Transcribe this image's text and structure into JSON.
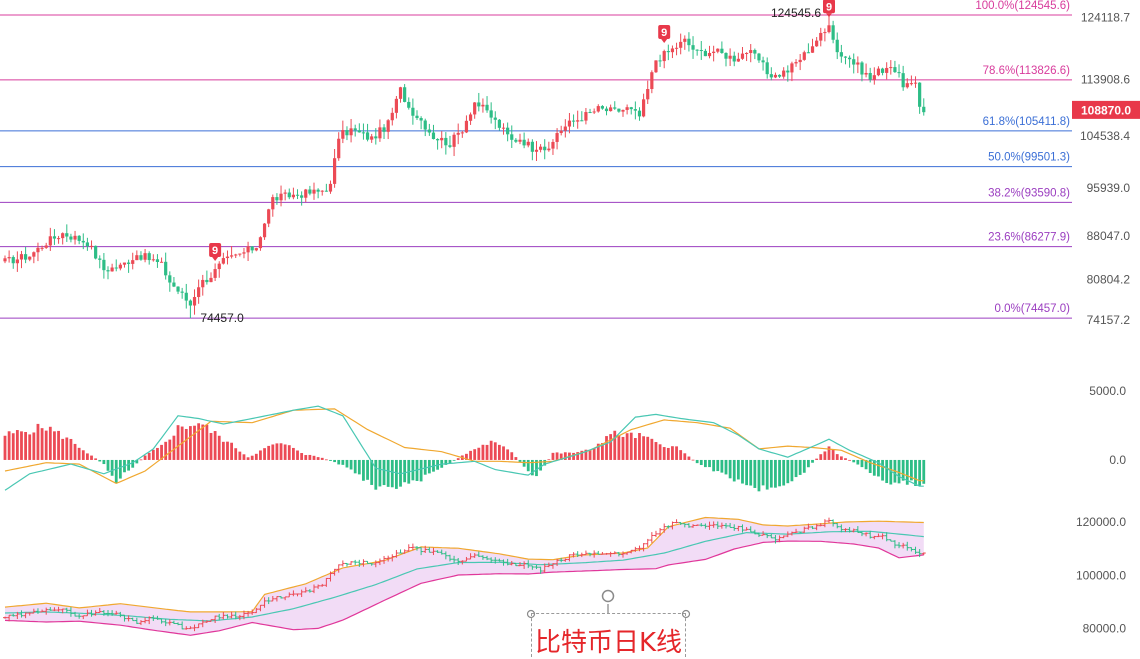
{
  "colors": {
    "up": "#ec4a55",
    "down": "#2dbd86",
    "fib_magenta": "#d83c9c",
    "fib_blue": "#3b6fd6",
    "fib_purple": "#9b3ec0",
    "axis_text": "#555555",
    "price_tag": "#e8384a",
    "macd_dif": "#49c7b3",
    "macd_dea": "#f0a830",
    "boll_upper": "#f0a830",
    "boll_lower": "#e0379a",
    "boll_mid": "#49c7b3",
    "boll_fill": "#f2dcf6"
  },
  "chart_data": [
    {
      "type": "candlestick",
      "name": "price",
      "y_ticks": [
        "124118.7",
        "113908.6",
        "104538.4",
        "95939.0",
        "88047.0",
        "80804.2",
        "74157.2"
      ],
      "ylim": [
        72500,
        126200
      ],
      "last_price": "108870.0",
      "last_price_value": 108870,
      "high_label": "124545.6",
      "low_label": "74457.0",
      "td_marks": [
        "9",
        "9",
        "9"
      ],
      "fib_levels": [
        {
          "label": "100.0%(124545.6)",
          "value": 124545.6,
          "color": "magenta"
        },
        {
          "label": "78.6%(113826.6)",
          "value": 113826.6,
          "color": "magenta"
        },
        {
          "label": "61.8%(105411.8)",
          "value": 105411.8,
          "color": "blue"
        },
        {
          "label": "50.0%(99501.3)",
          "value": 99501.3,
          "color": "blue"
        },
        {
          "label": "38.2%(93590.8)",
          "value": 93590.8,
          "color": "purple"
        },
        {
          "label": "23.6%(86277.9)",
          "value": 86277.9,
          "color": "purple"
        },
        {
          "label": "0.0%(74457.0)",
          "value": 74457.0,
          "color": "purple"
        }
      ],
      "close_path": [
        [
          0,
          83800
        ],
        [
          6,
          84800
        ],
        [
          10,
          87000
        ],
        [
          14,
          88500
        ],
        [
          20,
          87000
        ],
        [
          24,
          82500
        ],
        [
          28,
          83000
        ],
        [
          32,
          85000
        ],
        [
          36,
          84000
        ],
        [
          38,
          83200
        ],
        [
          40,
          80500
        ],
        [
          44,
          77500
        ],
        [
          45,
          76700
        ],
        [
          47,
          80000
        ],
        [
          50,
          81500
        ],
        [
          53,
          83800
        ],
        [
          57,
          85000
        ],
        [
          61,
          86300
        ],
        [
          63,
          90300
        ],
        [
          65,
          94200
        ],
        [
          69,
          94700
        ],
        [
          73,
          95100
        ],
        [
          76,
          95300
        ],
        [
          79,
          96300
        ],
        [
          81,
          104500
        ],
        [
          84,
          105600
        ],
        [
          89,
          104100
        ],
        [
          93,
          106500
        ],
        [
          96,
          112200
        ],
        [
          98,
          109300
        ],
        [
          101,
          107200
        ],
        [
          104,
          104500
        ],
        [
          108,
          103300
        ],
        [
          111,
          105800
        ],
        [
          114,
          110200
        ],
        [
          117,
          108500
        ],
        [
          120,
          106200
        ],
        [
          123,
          103800
        ],
        [
          125,
          104200
        ],
        [
          128,
          102600
        ],
        [
          130,
          103300
        ],
        [
          132,
          101800
        ],
        [
          134,
          105200
        ],
        [
          137,
          106600
        ],
        [
          140,
          107700
        ],
        [
          144,
          109000
        ],
        [
          148,
          108600
        ],
        [
          151,
          109100
        ],
        [
          154,
          107800
        ],
        [
          156,
          112200
        ],
        [
          158,
          117200
        ],
        [
          161,
          118400
        ],
        [
          165,
          120300
        ],
        [
          168,
          118300
        ],
        [
          172,
          118600
        ],
        [
          177,
          117400
        ],
        [
          180,
          118600
        ],
        [
          183,
          117100
        ],
        [
          185,
          115000
        ],
        [
          187,
          114500
        ],
        [
          190,
          115400
        ],
        [
          194,
          118000
        ],
        [
          197,
          120500
        ],
        [
          199,
          121700
        ],
        [
          200,
          123500
        ],
        [
          202,
          118500
        ],
        [
          205,
          117300
        ],
        [
          208,
          115400
        ],
        [
          210,
          114000
        ],
        [
          212,
          115200
        ],
        [
          215,
          116400
        ],
        [
          218,
          113200
        ],
        [
          221,
          112700
        ],
        [
          222,
          109400
        ],
        [
          223,
          108870
        ]
      ],
      "high_index": 200,
      "low_index": 45
    },
    {
      "type": "macd",
      "name": "macd",
      "y_ticks": [
        "5000.0",
        "0.0"
      ],
      "tick_values": [
        5000,
        0
      ],
      "ylim": [
        -2900,
        7600
      ],
      "histogram_path": [
        [
          0,
          1800
        ],
        [
          10,
          2400
        ],
        [
          16,
          1400
        ],
        [
          21,
          300
        ],
        [
          24,
          -300
        ],
        [
          27,
          -1500
        ],
        [
          31,
          -500
        ],
        [
          34,
          300
        ],
        [
          38,
          1000
        ],
        [
          42,
          2300
        ],
        [
          47,
          2700
        ],
        [
          52,
          1700
        ],
        [
          56,
          900
        ],
        [
          59,
          200
        ],
        [
          63,
          800
        ],
        [
          66,
          1200
        ],
        [
          70,
          900
        ],
        [
          73,
          400
        ],
        [
          77,
          150
        ],
        [
          83,
          -500
        ],
        [
          90,
          -2100
        ],
        [
          96,
          -2000
        ],
        [
          101,
          -1400
        ],
        [
          105,
          -700
        ],
        [
          111,
          300
        ],
        [
          114,
          800
        ],
        [
          118,
          1300
        ],
        [
          123,
          600
        ],
        [
          127,
          -900
        ],
        [
          129,
          -1300
        ],
        [
          133,
          500
        ],
        [
          137,
          500
        ],
        [
          142,
          700
        ],
        [
          147,
          1900
        ],
        [
          155,
          1700
        ],
        [
          158,
          1200
        ],
        [
          163,
          900
        ],
        [
          168,
          -200
        ],
        [
          174,
          -1000
        ],
        [
          183,
          -2100
        ],
        [
          189,
          -1700
        ],
        [
          194,
          -900
        ],
        [
          196,
          -200
        ],
        [
          198,
          400
        ],
        [
          200,
          1000
        ],
        [
          202,
          400
        ],
        [
          205,
          0
        ],
        [
          208,
          -500
        ],
        [
          214,
          -1600
        ],
        [
          222,
          -1700
        ]
      ],
      "dif_path": [
        [
          0,
          -2200
        ],
        [
          6,
          -1000
        ],
        [
          16,
          -300
        ],
        [
          24,
          -1000
        ],
        [
          31,
          -200
        ],
        [
          36,
          800
        ],
        [
          42,
          3200
        ],
        [
          47,
          3000
        ],
        [
          53,
          2600
        ],
        [
          60,
          3000
        ],
        [
          70,
          3600
        ],
        [
          76,
          3900
        ],
        [
          82,
          3200
        ],
        [
          90,
          -600
        ],
        [
          96,
          -1000
        ],
        [
          106,
          -300
        ],
        [
          114,
          -100
        ],
        [
          119,
          -700
        ],
        [
          127,
          -1100
        ],
        [
          131,
          -300
        ],
        [
          140,
          500
        ],
        [
          147,
          1300
        ],
        [
          153,
          3100
        ],
        [
          158,
          3300
        ],
        [
          164,
          3000
        ],
        [
          172,
          2700
        ],
        [
          178,
          1800
        ],
        [
          183,
          800
        ],
        [
          190,
          200
        ],
        [
          197,
          1100
        ],
        [
          200,
          1500
        ],
        [
          205,
          700
        ],
        [
          212,
          -200
        ],
        [
          217,
          -1200
        ],
        [
          222,
          -1900
        ]
      ],
      "dea_path": [
        [
          0,
          -800
        ],
        [
          10,
          -200
        ],
        [
          18,
          -300
        ],
        [
          27,
          -1700
        ],
        [
          34,
          -800
        ],
        [
          42,
          1000
        ],
        [
          50,
          2800
        ],
        [
          60,
          2700
        ],
        [
          70,
          3600
        ],
        [
          80,
          3700
        ],
        [
          88,
          2200
        ],
        [
          97,
          900
        ],
        [
          106,
          600
        ],
        [
          114,
          -100
        ],
        [
          120,
          -100
        ],
        [
          127,
          -200
        ],
        [
          133,
          -100
        ],
        [
          142,
          700
        ],
        [
          152,
          2200
        ],
        [
          160,
          2900
        ],
        [
          168,
          2700
        ],
        [
          176,
          2300
        ],
        [
          183,
          800
        ],
        [
          190,
          1000
        ],
        [
          196,
          900
        ],
        [
          203,
          700
        ],
        [
          210,
          -200
        ],
        [
          216,
          -800
        ],
        [
          222,
          -1500
        ]
      ]
    },
    {
      "type": "bollinger",
      "name": "boll",
      "y_ticks": [
        "120000.0",
        "100000.0",
        "80000.0"
      ],
      "tick_values": [
        120000,
        100000,
        80000
      ],
      "ylim": [
        77500,
        126500
      ],
      "close_path": [
        [
          0,
          84200
        ],
        [
          6,
          85500
        ],
        [
          10,
          87500
        ],
        [
          14,
          86800
        ],
        [
          18,
          84700
        ],
        [
          22,
          86000
        ],
        [
          27,
          85400
        ],
        [
          32,
          82400
        ],
        [
          36,
          84000
        ],
        [
          40,
          82100
        ],
        [
          44,
          79800
        ],
        [
          47,
          81200
        ],
        [
          51,
          84500
        ],
        [
          56,
          84800
        ],
        [
          60,
          86000
        ],
        [
          63,
          89800
        ],
        [
          67,
          92000
        ],
        [
          72,
          93200
        ],
        [
          77,
          96500
        ],
        [
          81,
          104000
        ],
        [
          86,
          104800
        ],
        [
          90,
          104600
        ],
        [
          94,
          107000
        ],
        [
          98,
          110500
        ],
        [
          102,
          109200
        ],
        [
          106,
          107800
        ],
        [
          110,
          104900
        ],
        [
          114,
          107700
        ],
        [
          118,
          106200
        ],
        [
          122,
          103900
        ],
        [
          126,
          104100
        ],
        [
          130,
          102100
        ],
        [
          134,
          105100
        ],
        [
          138,
          107800
        ],
        [
          142,
          108000
        ],
        [
          146,
          108500
        ],
        [
          150,
          107900
        ],
        [
          154,
          110700
        ],
        [
          158,
          116200
        ],
        [
          162,
          119800
        ],
        [
          166,
          118500
        ],
        [
          170,
          118900
        ],
        [
          174,
          118200
        ],
        [
          178,
          117800
        ],
        [
          183,
          115500
        ],
        [
          187,
          113500
        ],
        [
          190,
          115300
        ],
        [
          194,
          117200
        ],
        [
          197,
          118800
        ],
        [
          200,
          120500
        ],
        [
          203,
          117800
        ],
        [
          206,
          116600
        ],
        [
          210,
          114900
        ],
        [
          213,
          115000
        ],
        [
          216,
          111800
        ],
        [
          219,
          110300
        ],
        [
          221,
          109200
        ],
        [
          223,
          107900
        ]
      ],
      "upper_path": [
        [
          0,
          88000
        ],
        [
          10,
          89500
        ],
        [
          18,
          87700
        ],
        [
          28,
          89300
        ],
        [
          38,
          87400
        ],
        [
          45,
          86200
        ],
        [
          52,
          86200
        ],
        [
          60,
          86300
        ],
        [
          63,
          92800
        ],
        [
          73,
          96800
        ],
        [
          82,
          102800
        ],
        [
          92,
          105500
        ],
        [
          101,
          110700
        ],
        [
          110,
          110200
        ],
        [
          120,
          108100
        ],
        [
          127,
          106100
        ],
        [
          133,
          105900
        ],
        [
          140,
          107600
        ],
        [
          150,
          108400
        ],
        [
          156,
          110300
        ],
        [
          161,
          118300
        ],
        [
          170,
          121800
        ],
        [
          178,
          121100
        ],
        [
          184,
          119000
        ],
        [
          190,
          118600
        ],
        [
          198,
          119400
        ],
        [
          204,
          120100
        ],
        [
          212,
          120400
        ],
        [
          223,
          119900
        ]
      ],
      "lower_path": [
        [
          0,
          83000
        ],
        [
          10,
          82400
        ],
        [
          18,
          82700
        ],
        [
          28,
          81200
        ],
        [
          36,
          79300
        ],
        [
          45,
          77400
        ],
        [
          52,
          79100
        ],
        [
          60,
          82200
        ],
        [
          70,
          79500
        ],
        [
          76,
          80000
        ],
        [
          82,
          83100
        ],
        [
          92,
          90500
        ],
        [
          101,
          97000
        ],
        [
          110,
          100100
        ],
        [
          120,
          100600
        ],
        [
          127,
          100500
        ],
        [
          133,
          101200
        ],
        [
          142,
          101700
        ],
        [
          150,
          102200
        ],
        [
          158,
          102500
        ],
        [
          161,
          103900
        ],
        [
          170,
          106000
        ],
        [
          177,
          109900
        ],
        [
          184,
          112400
        ],
        [
          190,
          112900
        ],
        [
          198,
          112800
        ],
        [
          206,
          111800
        ],
        [
          212,
          110300
        ],
        [
          217,
          106600
        ],
        [
          223,
          107700
        ]
      ],
      "mid_path": [
        [
          0,
          85800
        ],
        [
          10,
          86200
        ],
        [
          20,
          85600
        ],
        [
          30,
          84700
        ],
        [
          40,
          83400
        ],
        [
          50,
          82800
        ],
        [
          60,
          84300
        ],
        [
          70,
          87400
        ],
        [
          80,
          91700
        ],
        [
          90,
          96500
        ],
        [
          100,
          102400
        ],
        [
          110,
          104800
        ],
        [
          120,
          104900
        ],
        [
          130,
          104000
        ],
        [
          140,
          104700
        ],
        [
          150,
          105700
        ],
        [
          160,
          108400
        ],
        [
          170,
          112800
        ],
        [
          180,
          116100
        ],
        [
          185,
          115800
        ],
        [
          190,
          115500
        ],
        [
          200,
          116400
        ],
        [
          210,
          116600
        ],
        [
          223,
          114600
        ]
      ]
    }
  ],
  "annotation": {
    "title": "比特币日K线"
  }
}
